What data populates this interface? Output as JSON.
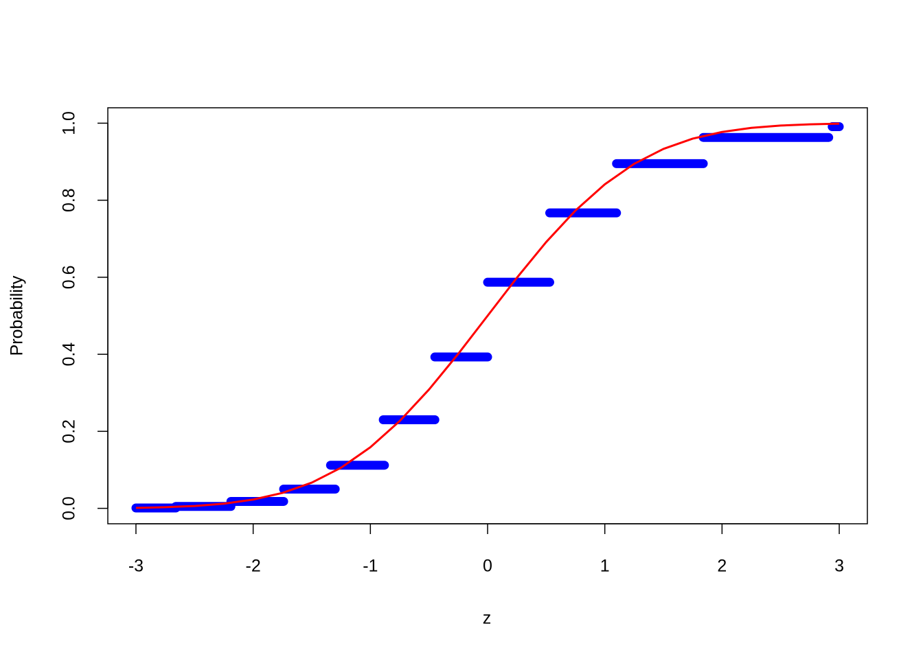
{
  "chart_data": {
    "type": "line",
    "xlabel": "z",
    "ylabel": "Probability",
    "xlim": [
      -3.24,
      3.24
    ],
    "ylim": [
      -0.04,
      1.04
    ],
    "xticks": [
      -3,
      -2,
      -1,
      0,
      1,
      2,
      3
    ],
    "yticks": [
      {
        "value": 0,
        "label": "0.0"
      },
      0.2,
      0.4,
      0.6,
      0.8,
      {
        "value": 1,
        "label": "1.0"
      }
    ],
    "steps": {
      "color": "#0000ff",
      "x0": [
        -3,
        -2.66,
        -2.19,
        -1.74,
        -1.34,
        -0.89,
        -0.45,
        0.0,
        0.53,
        1.1,
        1.84,
        2.94
      ],
      "x1": [
        -2.66,
        -2.19,
        -1.74,
        -1.3,
        -0.88,
        -0.45,
        0.0,
        0.53,
        1.1,
        1.84,
        2.91,
        3
      ],
      "values": [
        0.001,
        0.005,
        0.018,
        0.05,
        0.112,
        0.23,
        0.393,
        0.587,
        0.767,
        0.895,
        0.963,
        0.991
      ]
    },
    "curve": {
      "color": "#ff0000",
      "x": [
        -3,
        -2.75,
        -2.5,
        -2.25,
        -2,
        -1.75,
        -1.5,
        -1.25,
        -1,
        -0.75,
        -0.5,
        -0.25,
        0,
        0.25,
        0.5,
        0.75,
        1,
        1.25,
        1.5,
        1.75,
        2,
        2.25,
        2.5,
        2.75,
        3
      ],
      "values": [
        0.0013,
        0.003,
        0.0062,
        0.0122,
        0.0228,
        0.0401,
        0.0668,
        0.1056,
        0.1587,
        0.2266,
        0.3085,
        0.4013,
        0.5,
        0.5987,
        0.6915,
        0.7734,
        0.8413,
        0.8944,
        0.9332,
        0.9599,
        0.9772,
        0.9878,
        0.9938,
        0.997,
        0.9987
      ]
    }
  }
}
